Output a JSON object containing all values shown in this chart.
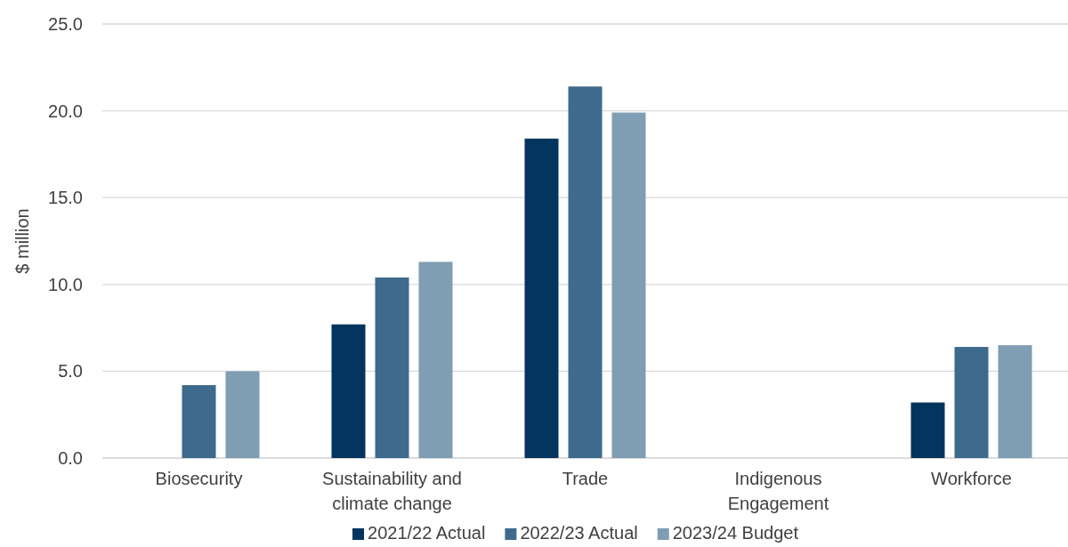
{
  "chart_data": {
    "type": "bar",
    "ylabel": "$ million",
    "categories": [
      "Biosecurity",
      "Sustainability and climate change",
      "Trade",
      "Indigenous Engagement",
      "Workforce"
    ],
    "series": [
      {
        "name": "2021/22 Actual",
        "color": "#03355f",
        "values": [
          null,
          7.7,
          18.4,
          null,
          3.2
        ]
      },
      {
        "name": "2022/23 Actual",
        "color": "#3e6a8b",
        "values": [
          4.2,
          10.4,
          21.4,
          null,
          6.4
        ]
      },
      {
        "name": "2023/24 Budget",
        "color": "#7f9db3",
        "values": [
          5.0,
          11.3,
          19.9,
          null,
          6.5
        ]
      }
    ],
    "ylim": [
      0,
      25
    ],
    "yticks": [
      {
        "value": 0,
        "label": "0.0"
      },
      {
        "value": 5,
        "label": "5.0"
      },
      {
        "value": 10,
        "label": "10.0"
      },
      {
        "value": 15,
        "label": "15.0"
      },
      {
        "value": 20,
        "label": "20.0"
      },
      {
        "value": 25,
        "label": "25.0"
      }
    ],
    "grid": "y",
    "legend": "bottom"
  }
}
